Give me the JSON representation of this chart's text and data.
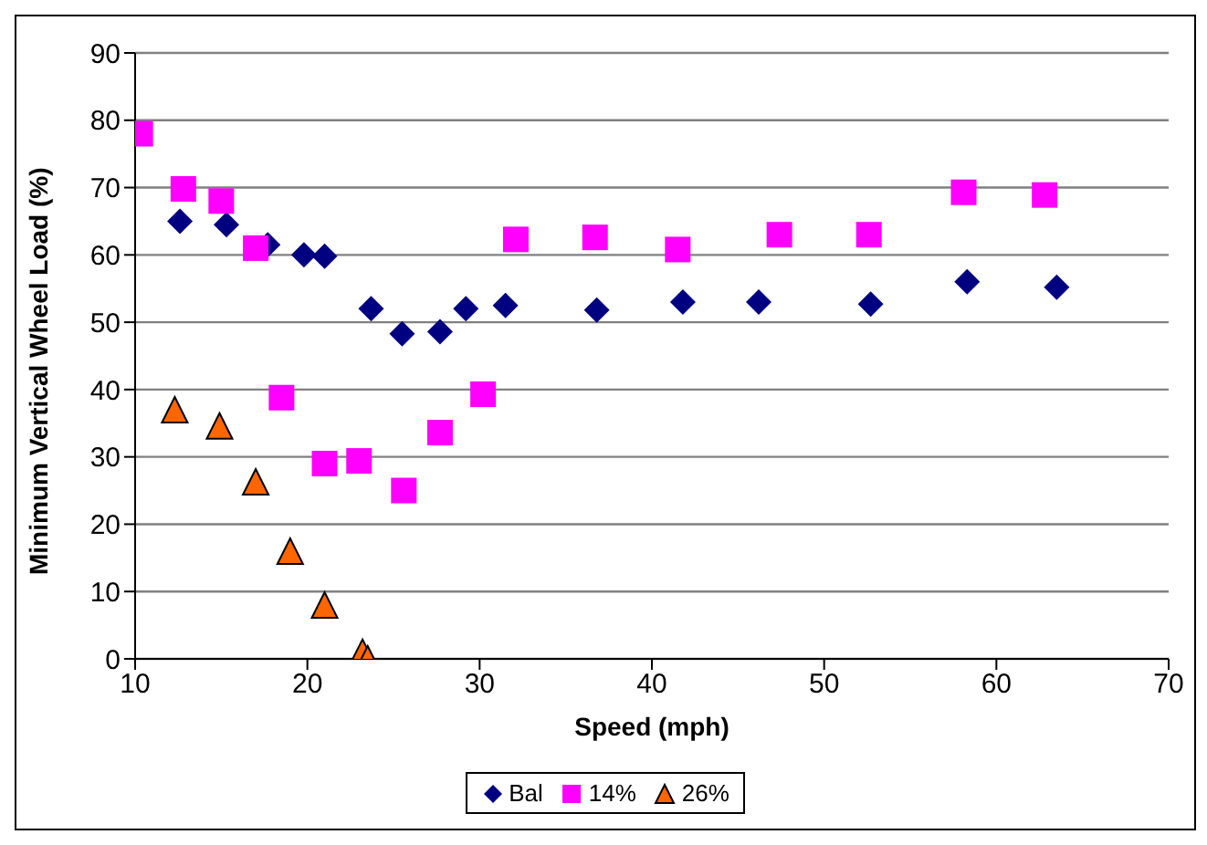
{
  "chart_data": {
    "type": "scatter",
    "xlabel": "Speed (mph)",
    "ylabel": "Minimum Vertical Wheel Load (%)",
    "xlim": [
      10,
      70
    ],
    "xticks": [
      10,
      20,
      30,
      40,
      50,
      60,
      70
    ],
    "ylim": [
      0,
      90
    ],
    "yticks": [
      0,
      10,
      20,
      30,
      40,
      50,
      60,
      70,
      80,
      90
    ],
    "grid": "y",
    "legend": "bottom",
    "series": [
      {
        "name": "Bal",
        "color": "#000080",
        "marker": "diamond",
        "x": [
          12.6,
          15.3,
          17.7,
          19.8,
          21,
          23.7,
          25.5,
          27.7,
          29.2,
          31.5,
          36.8,
          41.8,
          46.2,
          52.7,
          58.3,
          63.5
        ],
        "values": [
          65,
          64.5,
          61.5,
          60,
          59.8,
          52,
          48.3,
          48.6,
          52,
          52.5,
          51.8,
          53,
          53,
          52.7,
          56,
          55.2
        ]
      },
      {
        "name": "14%",
        "color": "#ff00ff",
        "marker": "square",
        "x": [
          10.3,
          12.8,
          15,
          17,
          18.5,
          21,
          23,
          25.6,
          27.7,
          30.2,
          32.1,
          36.7,
          41.5,
          47.4,
          52.6,
          58.1,
          62.8
        ],
        "values": [
          78,
          69.8,
          68,
          61,
          38.8,
          29,
          29.4,
          25,
          33.6,
          39.3,
          62.3,
          62.6,
          60.8,
          63,
          63,
          69.3,
          68.9
        ]
      },
      {
        "name": "26%",
        "color": "#ff6600",
        "marker": "triangle",
        "x": [
          12.3,
          14.9,
          17,
          19,
          21,
          23.2,
          23.5
        ],
        "values": [
          37,
          34.6,
          26.3,
          16,
          8,
          1,
          0
        ]
      }
    ]
  }
}
